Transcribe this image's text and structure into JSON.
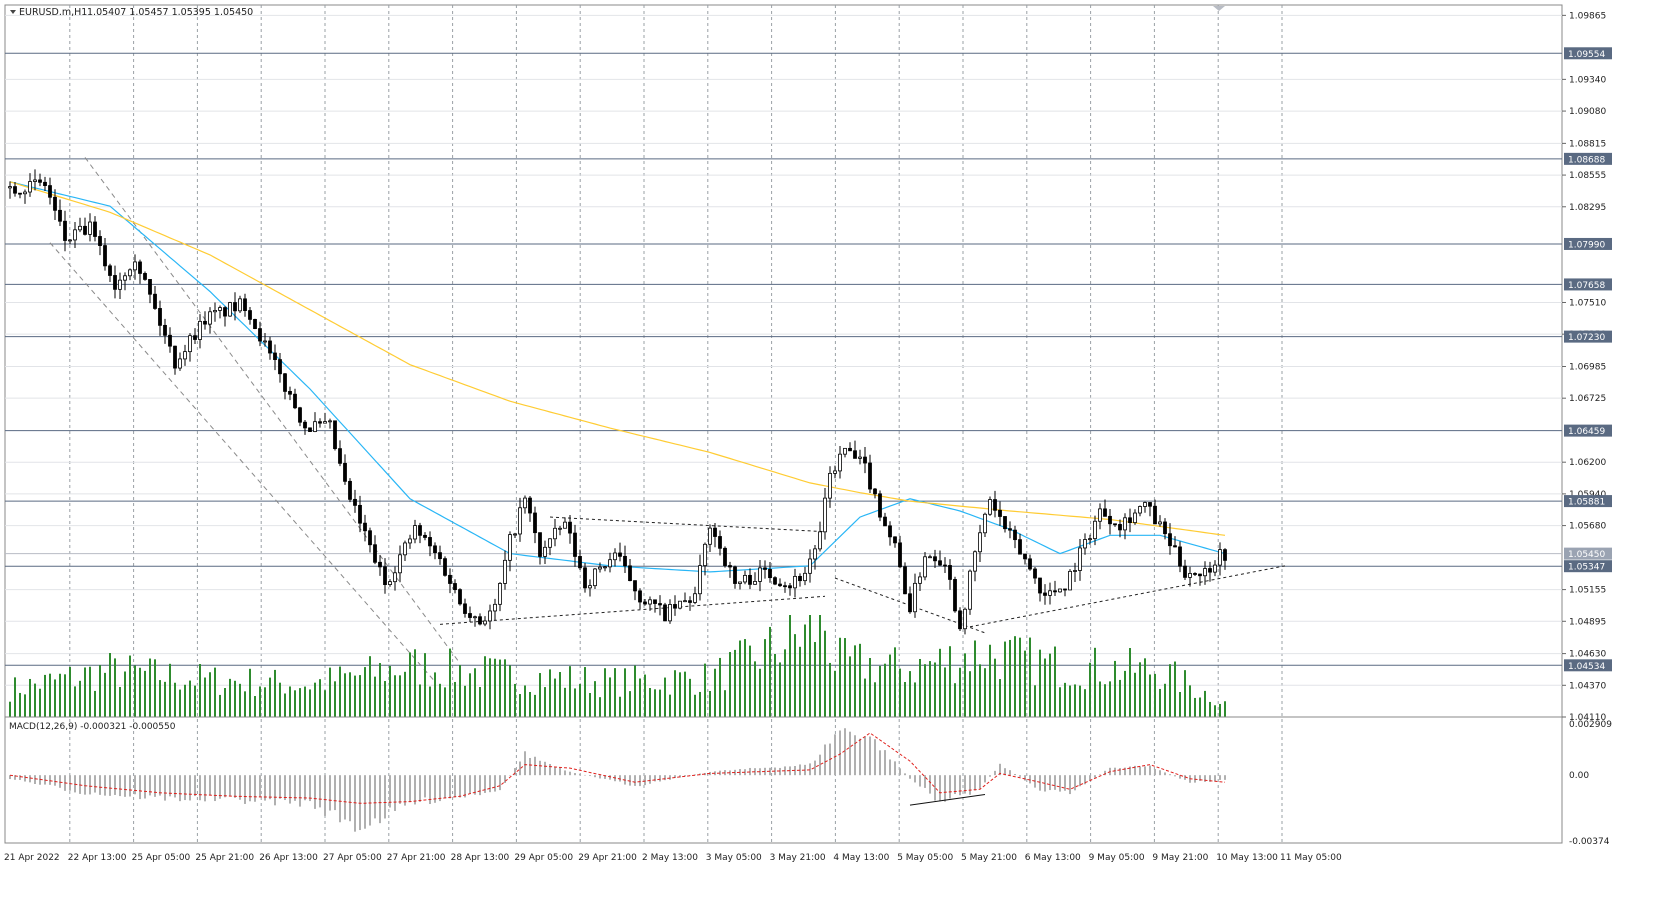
{
  "header": {
    "symbol": "EURUSD.m,H1",
    "ohlc": "1.05407 1.05457 1.05395 1.05450"
  },
  "macd": {
    "label": "MACD(12,26,9) -0.000321 -0.000550",
    "ticks": [
      "0.002909",
      "0.00",
      "-0.00374"
    ]
  },
  "colors": {
    "bull": "#000000",
    "bear": "#000000",
    "volume": "#2e8b2e",
    "ma_fast": "#29b6f6",
    "ma_slow": "#ffcc33",
    "level_line": "#5a6a82",
    "tag_bg": "#5a6a82",
    "grid": "#9aa0a6",
    "macd_hist": "#b0b0b0",
    "macd_signal": "#e0201c"
  },
  "chart_data": {
    "type": "candlestick",
    "symbol": "EURUSD.m",
    "timeframe": "H1",
    "price_range": [
      1.0411,
      1.0995
    ],
    "price_ticks": [
      "1.09865",
      "1.09340",
      "1.09080",
      "1.08815",
      "1.08555",
      "1.08295",
      "1.07510",
      "1.07250",
      "1.06985",
      "1.06725",
      "1.06200",
      "1.05940",
      "1.05680",
      "1.05155",
      "1.04895",
      "1.04630",
      "1.04370",
      "1.04110"
    ],
    "level_tags": [
      "1.09554",
      "1.08688",
      "1.07990",
      "1.07658",
      "1.07230",
      "1.06459",
      "1.05881",
      "1.05450",
      "1.05347",
      "1.04534"
    ],
    "current_price": "1.05450",
    "time_labels": [
      "21 Apr 2022",
      "22 Apr 13:00",
      "25 Apr 05:00",
      "25 Apr 21:00",
      "26 Apr 13:00",
      "27 Apr 05:00",
      "27 Apr 21:00",
      "28 Apr 13:00",
      "29 Apr 05:00",
      "29 Apr 21:00",
      "2 May 13:00",
      "3 May 05:00",
      "3 May 21:00",
      "4 May 13:00",
      "5 May 05:00",
      "5 May 21:00",
      "6 May 13:00",
      "9 May 05:00",
      "9 May 21:00",
      "10 May 13:00",
      "11 May 05:00"
    ],
    "price_path": [
      [
        0,
        1.0845
      ],
      [
        8,
        1.0848
      ],
      [
        12,
        1.0802
      ],
      [
        17,
        1.0812
      ],
      [
        22,
        1.0765
      ],
      [
        26,
        1.079
      ],
      [
        30,
        1.0745
      ],
      [
        34,
        1.0702
      ],
      [
        40,
        1.0738
      ],
      [
        48,
        1.075
      ],
      [
        55,
        1.069
      ],
      [
        60,
        1.065
      ],
      [
        65,
        1.0648
      ],
      [
        68,
        1.06
      ],
      [
        72,
        1.056
      ],
      [
        76,
        1.052
      ],
      [
        82,
        1.0565
      ],
      [
        87,
        1.054
      ],
      [
        91,
        1.0505
      ],
      [
        95,
        1.049
      ],
      [
        98,
        1.05
      ],
      [
        101,
        1.0555
      ],
      [
        104,
        1.059
      ],
      [
        107,
        1.0545
      ],
      [
        112,
        1.057
      ],
      [
        116,
        1.052
      ],
      [
        122,
        1.0545
      ],
      [
        127,
        1.051
      ],
      [
        132,
        1.0495
      ],
      [
        138,
        1.051
      ],
      [
        141,
        1.057
      ],
      [
        146,
        1.052
      ],
      [
        152,
        1.053
      ],
      [
        157,
        1.052
      ],
      [
        160,
        1.053
      ],
      [
        163,
        1.056
      ],
      [
        165,
        1.061
      ],
      [
        168,
        1.063
      ],
      [
        172,
        1.0615
      ],
      [
        175,
        1.058
      ],
      [
        178,
        1.055
      ],
      [
        181,
        1.05
      ],
      [
        184,
        1.0545
      ],
      [
        188,
        1.054
      ],
      [
        191,
        1.0485
      ],
      [
        194,
        1.0545
      ],
      [
        197,
        1.059
      ],
      [
        200,
        1.0565
      ],
      [
        204,
        1.054
      ],
      [
        208,
        1.051
      ],
      [
        212,
        1.052
      ],
      [
        215,
        1.0545
      ],
      [
        219,
        1.058
      ],
      [
        223,
        1.057
      ],
      [
        228,
        1.0585
      ],
      [
        232,
        1.056
      ],
      [
        236,
        1.053
      ],
      [
        240,
        1.053
      ],
      [
        243,
        1.0545
      ]
    ],
    "moving_averages": [
      {
        "path": [
          [
            0,
            1.085
          ],
          [
            20,
            1.083
          ],
          [
            40,
            1.076
          ],
          [
            60,
            1.068
          ],
          [
            80,
            1.059
          ],
          [
            100,
            1.0545
          ],
          [
            120,
            1.0535
          ],
          [
            140,
            1.053
          ],
          [
            160,
            1.0535
          ],
          [
            170,
            1.0575
          ],
          [
            180,
            1.059
          ],
          [
            190,
            1.058
          ],
          [
            200,
            1.0565
          ],
          [
            210,
            1.0545
          ],
          [
            220,
            1.056
          ],
          [
            230,
            1.056
          ],
          [
            243,
            1.0545
          ]
        ]
      },
      {
        "path": [
          [
            0,
            1.085
          ],
          [
            20,
            1.0825
          ],
          [
            40,
            1.079
          ],
          [
            60,
            1.0745
          ],
          [
            80,
            1.07
          ],
          [
            100,
            1.067
          ],
          [
            120,
            1.0648
          ],
          [
            140,
            1.0628
          ],
          [
            160,
            1.0603
          ],
          [
            170,
            1.0595
          ],
          [
            180,
            1.0588
          ],
          [
            200,
            1.058
          ],
          [
            220,
            1.0573
          ],
          [
            243,
            1.056
          ]
        ]
      }
    ],
    "volume_path": [
      [
        0,
        300
      ],
      [
        20,
        500
      ],
      [
        40,
        400
      ],
      [
        60,
        350
      ],
      [
        80,
        550
      ],
      [
        100,
        450
      ],
      [
        120,
        380
      ],
      [
        140,
        420
      ],
      [
        163,
        1000
      ],
      [
        165,
        600
      ],
      [
        180,
        520
      ],
      [
        194,
        700
      ],
      [
        210,
        550
      ],
      [
        230,
        500
      ],
      [
        243,
        150
      ]
    ],
    "volume_range": [
      0,
      1100
    ],
    "macd_range": [
      -0.00374,
      0.002909
    ],
    "macd_hist_path": [
      [
        0,
        -0.0002
      ],
      [
        15,
        -0.001
      ],
      [
        30,
        -0.0013
      ],
      [
        45,
        -0.0014
      ],
      [
        60,
        -0.0016
      ],
      [
        70,
        -0.003
      ],
      [
        80,
        -0.0016
      ],
      [
        90,
        -0.0012
      ],
      [
        98,
        -0.0008
      ],
      [
        103,
        0.0012
      ],
      [
        112,
        0.0002
      ],
      [
        125,
        -0.0006
      ],
      [
        140,
        0.0002
      ],
      [
        160,
        0.0006
      ],
      [
        166,
        0.0026
      ],
      [
        172,
        0.0022
      ],
      [
        180,
        -0.0002
      ],
      [
        186,
        -0.0015
      ],
      [
        194,
        -0.0008
      ],
      [
        198,
        0.0006
      ],
      [
        206,
        -0.0008
      ],
      [
        212,
        -0.001
      ],
      [
        220,
        0.0004
      ],
      [
        228,
        0.0005
      ],
      [
        236,
        -0.0004
      ],
      [
        243,
        -0.0003
      ]
    ],
    "macd_signal_path": [
      [
        0,
        0.0
      ],
      [
        15,
        -0.0006
      ],
      [
        30,
        -0.001
      ],
      [
        45,
        -0.0012
      ],
      [
        60,
        -0.0013
      ],
      [
        70,
        -0.0016
      ],
      [
        80,
        -0.0015
      ],
      [
        90,
        -0.0012
      ],
      [
        98,
        -0.0006
      ],
      [
        103,
        0.0006
      ],
      [
        112,
        0.0004
      ],
      [
        125,
        -0.0004
      ],
      [
        140,
        0.0001
      ],
      [
        160,
        0.0003
      ],
      [
        166,
        0.0012
      ],
      [
        172,
        0.0024
      ],
      [
        180,
        0.0008
      ],
      [
        186,
        -0.001
      ],
      [
        194,
        -0.0008
      ],
      [
        198,
        0.0001
      ],
      [
        206,
        -0.0004
      ],
      [
        212,
        -0.0008
      ],
      [
        220,
        0.0002
      ],
      [
        228,
        0.0006
      ],
      [
        236,
        -0.0002
      ],
      [
        243,
        -0.0004
      ]
    ],
    "trendlines": [
      {
        "style": "dashed-gray",
        "points": [
          [
            15,
            1.087
          ],
          [
            90,
            1.0455
          ]
        ]
      },
      {
        "style": "dashed-gray",
        "points": [
          [
            8,
            1.08
          ],
          [
            85,
            1.044
          ]
        ]
      },
      {
        "style": "dotted-black",
        "points": [
          [
            86,
            1.0487
          ],
          [
            163,
            1.051
          ]
        ]
      },
      {
        "style": "dotted-black",
        "points": [
          [
            108,
            1.0575
          ],
          [
            163,
            1.0563
          ]
        ]
      },
      {
        "style": "dotted-black",
        "points": [
          [
            165,
            1.0525
          ],
          [
            195,
            1.048
          ]
        ]
      },
      {
        "style": "dotted-black",
        "points": [
          [
            192,
            1.0485
          ],
          [
            255,
            1.0535
          ]
        ]
      }
    ],
    "macd_trendline": {
      "points": [
        [
          180,
          -0.0017
        ],
        [
          195,
          -0.0011
        ]
      ]
    }
  }
}
